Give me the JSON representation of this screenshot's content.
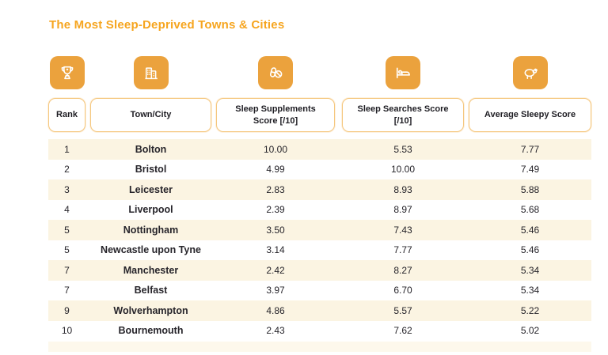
{
  "title": "The Most Sleep-Deprived Towns & Cities",
  "colors": {
    "accent_orange": "#EBA23D",
    "title_orange": "#F6A51F",
    "header_border": "#F5C77E",
    "row_stripe": "#FBF4E2",
    "text_dark": "#26242A"
  },
  "header": {
    "icons": [
      "trophy-icon",
      "city-buildings-icon",
      "pills-icon",
      "bed-icon",
      "sheep-icon"
    ]
  },
  "chart_data": {
    "type": "table",
    "title": "The Most Sleep-Deprived Towns & Cities",
    "columns": [
      "Rank",
      "Town/City",
      "Sleep Supplements Score [/10]",
      "Sleep Searches Score [/10]",
      "Average Sleepy Score"
    ],
    "column_keys": [
      "rank",
      "town",
      "supplements",
      "searches",
      "average"
    ],
    "rows": [
      [
        "1",
        "Bolton",
        "10.00",
        "5.53",
        "7.77"
      ],
      [
        "2",
        "Bristol",
        "4.99",
        "10.00",
        "7.49"
      ],
      [
        "3",
        "Leicester",
        "2.83",
        "8.93",
        "5.88"
      ],
      [
        "4",
        "Liverpool",
        "2.39",
        "8.97",
        "5.68"
      ],
      [
        "5",
        "Nottingham",
        "3.50",
        "7.43",
        "5.46"
      ],
      [
        "5",
        "Newcastle upon Tyne",
        "3.14",
        "7.77",
        "5.46"
      ],
      [
        "7",
        "Manchester",
        "2.42",
        "8.27",
        "5.34"
      ],
      [
        "7",
        "Belfast",
        "3.97",
        "6.70",
        "5.34"
      ],
      [
        "9",
        "Wolverhampton",
        "4.86",
        "5.57",
        "5.22"
      ],
      [
        "10",
        "Bournemouth",
        "2.43",
        "7.62",
        "5.02"
      ]
    ]
  }
}
